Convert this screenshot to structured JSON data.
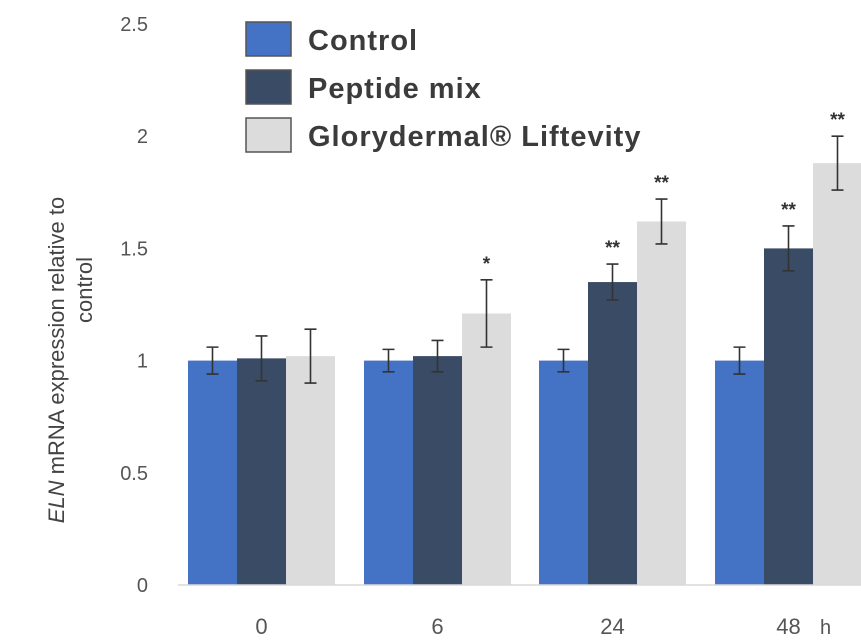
{
  "chart_data": {
    "type": "bar",
    "title": "",
    "xlabel": "",
    "x_unit": "h",
    "ylabel_italic": "ELN",
    "ylabel_line1": " mRNA expression relative to",
    "ylabel_line2": "control",
    "ylim": [
      0,
      2.5
    ],
    "yticks": [
      "0",
      "0.5",
      "1",
      "1.5",
      "2",
      "2.5"
    ],
    "categories": [
      "0",
      "6",
      "24",
      "48"
    ],
    "series": [
      {
        "name": "Control",
        "color": "#4472c4",
        "values": [
          1.0,
          1.0,
          1.0,
          1.0
        ],
        "errors": [
          0.06,
          0.05,
          0.05,
          0.06
        ],
        "significance": [
          "",
          "",
          "",
          ""
        ]
      },
      {
        "name": "Peptide mix",
        "color": "#3a4b66",
        "values": [
          1.01,
          1.02,
          1.35,
          1.5
        ],
        "errors": [
          0.1,
          0.07,
          0.08,
          0.1
        ],
        "significance": [
          "",
          "",
          "**",
          "**"
        ]
      },
      {
        "name": "Glorydermal® Liftevity",
        "color": "#dcdcdc",
        "values": [
          1.02,
          1.21,
          1.62,
          1.88
        ],
        "errors": [
          0.12,
          0.15,
          0.1,
          0.12
        ],
        "significance": [
          "",
          "*",
          "**",
          "**"
        ]
      }
    ],
    "legend_position": "top-left",
    "grid": false
  }
}
